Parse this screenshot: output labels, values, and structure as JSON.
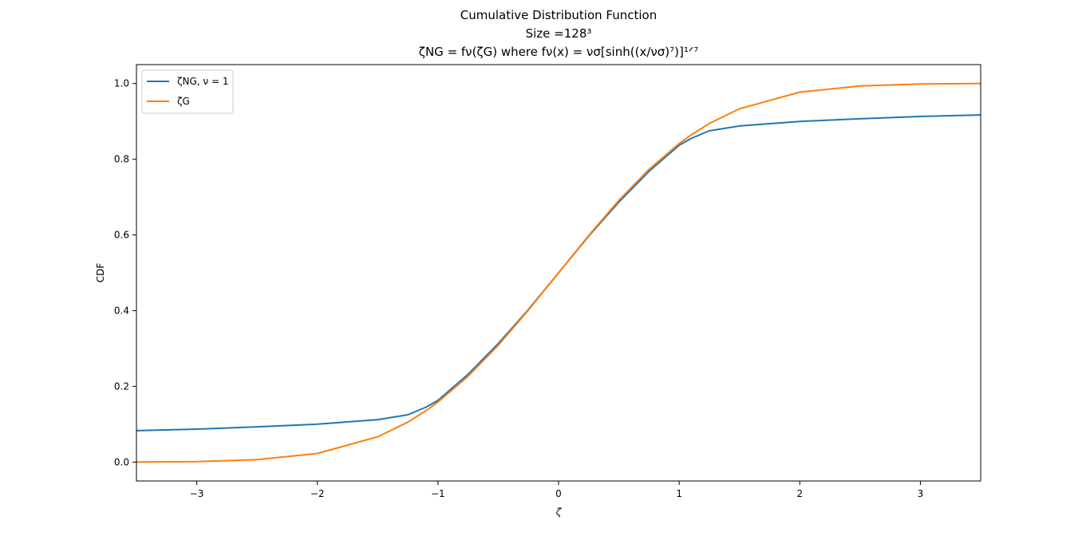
{
  "chart_data": {
    "type": "line",
    "title": [
      "Cumulative Distribution Function",
      "Size  =128³",
      "ζNG = fν(ζG) where fν(x) = νσ[sinh((x/νσ)⁷)]¹ᐟ⁷"
    ],
    "xlabel": "ζ",
    "ylabel": "CDF",
    "xlim": [
      -3.5,
      3.5
    ],
    "ylim": [
      -0.05,
      1.05
    ],
    "xticks": [
      -3,
      -2,
      -1,
      0,
      1,
      2,
      3
    ],
    "xtick_labels": [
      "−3",
      "−2",
      "−1",
      "0",
      "1",
      "2",
      "3"
    ],
    "yticks": [
      0.0,
      0.2,
      0.4,
      0.6,
      0.8,
      1.0
    ],
    "ytick_labels": [
      "0.0",
      "0.2",
      "0.4",
      "0.6",
      "0.8",
      "1.0"
    ],
    "grid": false,
    "legend_position": "upper-left",
    "x": [
      -3.5,
      -3.0,
      -2.5,
      -2.0,
      -1.5,
      -1.25,
      -1.1,
      -1.0,
      -0.75,
      -0.5,
      -0.25,
      0.0,
      0.25,
      0.5,
      0.75,
      1.0,
      1.1,
      1.25,
      1.5,
      2.0,
      2.5,
      3.0,
      3.5
    ],
    "series": [
      {
        "name": "ζNG, ν = 1",
        "color": "#1f77b4",
        "values": [
          0.083,
          0.087,
          0.093,
          0.1,
          0.112,
          0.125,
          0.145,
          0.163,
          0.232,
          0.313,
          0.403,
          0.5,
          0.597,
          0.687,
          0.768,
          0.837,
          0.855,
          0.875,
          0.888,
          0.9,
          0.907,
          0.913,
          0.917
        ]
      },
      {
        "name": "ζG",
        "color": "#ff7f0e",
        "values": [
          0.0002,
          0.0013,
          0.0062,
          0.0228,
          0.0668,
          0.1056,
          0.1357,
          0.1587,
          0.2266,
          0.3085,
          0.4013,
          0.5,
          0.5987,
          0.6915,
          0.7734,
          0.8413,
          0.8643,
          0.8944,
          0.9332,
          0.9772,
          0.9938,
          0.9987,
          0.9998
        ]
      }
    ]
  }
}
